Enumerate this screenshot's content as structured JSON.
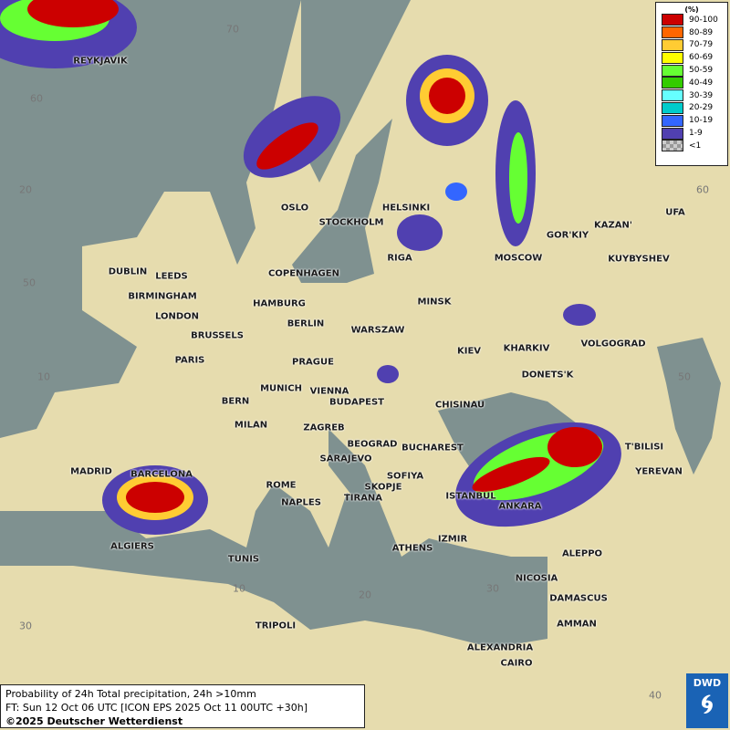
{
  "legend": {
    "unit": "(%)",
    "items": [
      {
        "label": "90-100",
        "color": "#cc0000"
      },
      {
        "label": "80-89",
        "color": "#ff6600"
      },
      {
        "label": "70-79",
        "color": "#ffcc33"
      },
      {
        "label": "60-69",
        "color": "#ffff00"
      },
      {
        "label": "50-59",
        "color": "#66ff33"
      },
      {
        "label": "40-49",
        "color": "#33cc00"
      },
      {
        "label": "30-39",
        "color": "#66ffff"
      },
      {
        "label": "20-29",
        "color": "#00cccc"
      },
      {
        "label": "10-19",
        "color": "#3366ff"
      },
      {
        "label": "1-9",
        "color": "#5040b0"
      },
      {
        "label": "<1",
        "color": "#aaaaaa"
      }
    ]
  },
  "footer": {
    "title": "Probability of 24h Total precipitation, 24h >10mm",
    "forecast": "FT: Sun 12 Oct 06 UTC [ICON EPS 2025 Oct 11 00UTC +30h]",
    "copyright": "©2025 Deutscher Wetterdienst"
  },
  "logo": "DWD",
  "grid_labels": [
    "70",
    "60",
    "20",
    "50",
    "10",
    "30",
    "10",
    "20",
    "30",
    "40",
    "60",
    "50"
  ],
  "cities": [
    "REYKJAVIK",
    "OSLO",
    "STOCKHOLM",
    "HELSINKI",
    "RIGA",
    "MOSCOW",
    "GOR'KIY",
    "KAZAN'",
    "UFA",
    "KUYBYSHEV",
    "DUBLIN",
    "LEEDS",
    "BIRMINGHAM",
    "LONDON",
    "COPENHAGEN",
    "HAMBURG",
    "BERLIN",
    "MINSK",
    "WARSZAW",
    "KIEV",
    "KHARKIV",
    "VOLGOGRAD",
    "BRUSSELS",
    "PARIS",
    "PRAGUE",
    "MUNICH",
    "VIENNA",
    "BUDAPEST",
    "CHISINAU",
    "DONETS'K",
    "BERN",
    "MILAN",
    "ZAGREB",
    "BEOGRAD",
    "BUCHAREST",
    "T'BILISI",
    "MADRID",
    "BARCELONA",
    "SARAJEVO",
    "SOFIYA",
    "ROME",
    "SKOPJE",
    "TIRANA",
    "ISTANBUL",
    "ANKARA",
    "YEREVAN",
    "NAPLES",
    "ALGIERS",
    "ATHENS",
    "IZMIR",
    "TUNIS",
    "ALEPPO",
    "NICOSIA",
    "DAMASCUS",
    "TRIPOLI",
    "AMMAN",
    "ALEXANDRIA",
    "CAIRO"
  ]
}
